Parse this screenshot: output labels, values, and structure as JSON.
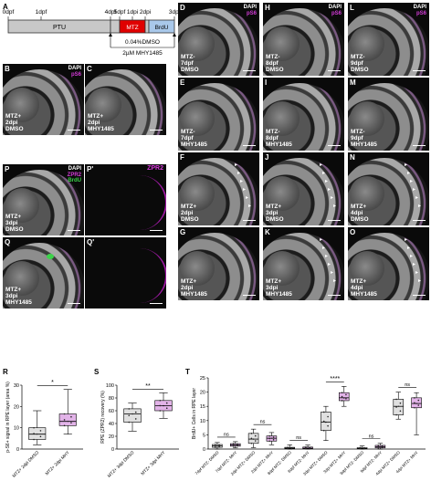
{
  "panelA": {
    "letter": "A",
    "ticks": [
      "0dpf",
      "1dpf",
      "4dpf",
      "5dpf",
      "1dpi",
      "2dpi",
      "3dpi"
    ],
    "seg_ptu": "PTU",
    "seg_mtz": "MTZ",
    "seg_brdu": "BrdU",
    "note1": "0.04%DMSO",
    "note2": "2µM MHY1485",
    "colors": {
      "ptu": "#c8c8c8",
      "mtz": "#e00000",
      "brdu": "#a9c8ea"
    }
  },
  "channels": {
    "dapi": "DAPI",
    "ps6": "pS6",
    "zpr2": "ZPR2",
    "brdu": "BrdU"
  },
  "panels": [
    {
      "id": "B",
      "caption": "MTZ+\n2dpi\nDMSO"
    },
    {
      "id": "C",
      "caption": "MTZ+\n2dpi\nMHY1485"
    },
    {
      "id": "D",
      "caption": "MTZ-\n7dpf\nDMSO"
    },
    {
      "id": "E",
      "caption": "MTZ-\n7dpf\nMHY1485"
    },
    {
      "id": "F",
      "caption": "MTZ+\n2dpi\nDMSO"
    },
    {
      "id": "G",
      "caption": "MTZ+\n2dpi\nMHY1485"
    },
    {
      "id": "H",
      "caption": "MTZ-\n8dpf\nDMSO"
    },
    {
      "id": "I",
      "caption": "MTZ-\n8dpf\nMHY1485"
    },
    {
      "id": "J",
      "caption": "MTZ+\n3dpi\nDMSO"
    },
    {
      "id": "K",
      "caption": "MTZ+\n3dpi\nMHY1485"
    },
    {
      "id": "L",
      "caption": "MTZ-\n9dpf\nDMSO"
    },
    {
      "id": "M",
      "caption": "MTZ-\n9dpf\nMHY1485"
    },
    {
      "id": "N",
      "caption": "MTZ+\n4dpi\nDMSO"
    },
    {
      "id": "O",
      "caption": "MTZ+\n4dpi\nMHY1485"
    },
    {
      "id": "P",
      "caption": "MTZ+\n3dpi\nDMSO"
    },
    {
      "id": "P'",
      "caption": ""
    },
    {
      "id": "Q",
      "caption": "MTZ+\n3dpi\nMHY1485"
    },
    {
      "id": "Q'",
      "caption": ""
    }
  ],
  "chart_data": [
    {
      "id": "R",
      "type": "box",
      "ylabel": "p-S6+ signal in RPE layer (area %)",
      "categories": [
        "MTZ+ 2dpi DMSO",
        "MTZ+ 2dpi MHY"
      ],
      "yticks": [
        0,
        10,
        20,
        30
      ],
      "ylim": [
        0,
        30
      ],
      "boxes": [
        {
          "min": 2,
          "q1": 4.5,
          "median": 7,
          "q3": 10,
          "max": 18
        },
        {
          "min": 7,
          "q1": 11,
          "median": 13,
          "q3": 16.5,
          "max": 28
        }
      ],
      "colors": [
        "#e0e0e0",
        "#e2b3e8"
      ],
      "significance": "*"
    },
    {
      "id": "S",
      "type": "box",
      "ylabel": "RPE (ZPR2) recovery (%)",
      "categories": [
        "MTZ+ 3dpi DMSO",
        "MTZ+ 3dpi MHY"
      ],
      "yticks": [
        0,
        20,
        40,
        60,
        80,
        100
      ],
      "ylim": [
        0,
        100
      ],
      "boxes": [
        {
          "min": 28,
          "q1": 42,
          "median": 55,
          "q3": 63,
          "max": 72
        },
        {
          "min": 48,
          "q1": 60,
          "median": 68,
          "q3": 76,
          "max": 88
        }
      ],
      "colors": [
        "#e0e0e0",
        "#e2b3e8"
      ],
      "significance": "**"
    },
    {
      "id": "T",
      "type": "box",
      "ylabel": "BrdU+ Cells in RPE layer",
      "categories": [
        "7dpf MTZ- DMSO",
        "7dpf MTZ- MHY",
        "2dpi MTZ+ DMSO",
        "2dpi MTZ+ MHY",
        "8dpf MTZ- DMSO",
        "8dpf MTZ- MHY",
        "3dpi MTZ+ DMSO",
        "3dpi MTZ+ MHY",
        "9dpf MTZ- DMSO",
        "9dpf MTZ- MHY",
        "4dpi MTZ+ DMSO",
        "4dpi MTZ+ MHY"
      ],
      "yticks": [
        0,
        5,
        10,
        15,
        20,
        25
      ],
      "ylim": [
        0,
        25
      ],
      "boxes": [
        {
          "min": 0,
          "q1": 0.6,
          "median": 1.1,
          "q3": 1.6,
          "max": 2.3
        },
        {
          "min": 0.4,
          "q1": 1,
          "median": 1.4,
          "q3": 1.9,
          "max": 2.6
        },
        {
          "min": 0.5,
          "q1": 2,
          "median": 3.5,
          "q3": 5.5,
          "max": 7
        },
        {
          "min": 1.5,
          "q1": 2.8,
          "median": 3.8,
          "q3": 4.6,
          "max": 5.8
        },
        {
          "min": 0,
          "q1": 0.1,
          "median": 0.3,
          "q3": 0.6,
          "max": 1.5
        },
        {
          "min": 0,
          "q1": 0.1,
          "median": 0.3,
          "q3": 0.7,
          "max": 1.4
        },
        {
          "min": 3,
          "q1": 6.5,
          "median": 9.5,
          "q3": 13,
          "max": 15
        },
        {
          "min": 15,
          "q1": 17,
          "median": 18,
          "q3": 19.8,
          "max": 22
        },
        {
          "min": 0,
          "q1": 0.1,
          "median": 0.2,
          "q3": 0.5,
          "max": 1.1
        },
        {
          "min": 0,
          "q1": 0.4,
          "median": 0.8,
          "q3": 1.3,
          "max": 2
        },
        {
          "min": 10.5,
          "q1": 12,
          "median": 15,
          "q3": 17.5,
          "max": 20
        },
        {
          "min": 5,
          "q1": 14.5,
          "median": 16,
          "q3": 18,
          "max": 19.8
        }
      ],
      "colors": [
        "#e0e0e0",
        "#e2b3e8"
      ],
      "comparisons": [
        {
          "pair": [
            0,
            1
          ],
          "label": "ns"
        },
        {
          "pair": [
            2,
            3
          ],
          "label": "ns"
        },
        {
          "pair": [
            4,
            5
          ],
          "label": "ns"
        },
        {
          "pair": [
            6,
            7
          ],
          "label": "****"
        },
        {
          "pair": [
            8,
            9
          ],
          "label": "ns"
        },
        {
          "pair": [
            10,
            11
          ],
          "label": "ns"
        }
      ]
    }
  ]
}
